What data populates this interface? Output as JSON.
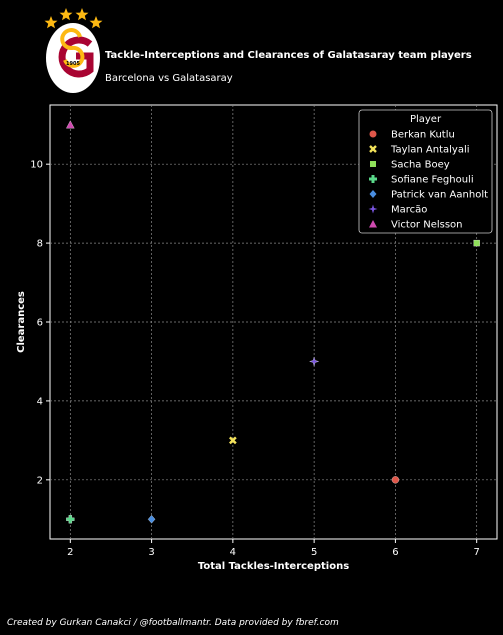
{
  "header": {
    "title": "Tackle-Interceptions and Clearances of Galatasaray team players",
    "subtitle": "Barcelona vs Galatasaray",
    "logo_text": "1905"
  },
  "footer": {
    "credit": "Created by Gurkan Canakci / @footballmantr. Data provided by fbref.com"
  },
  "colors": {
    "background": "#000000",
    "grid": "#8a8a8a",
    "logo_red": "#a90432",
    "logo_yellow": "#fdb913"
  },
  "chart_data": {
    "type": "scatter",
    "xlabel": "Total Tackles-Interceptions",
    "ylabel": "Clearances",
    "xlim": [
      1.75,
      7.25
    ],
    "ylim": [
      0.5,
      11.5
    ],
    "xticks": [
      2,
      3,
      4,
      5,
      6,
      7
    ],
    "yticks": [
      2,
      4,
      6,
      8,
      10
    ],
    "grid": true,
    "legend_title": "Player",
    "legend_position": "top-right",
    "series": [
      {
        "name": "Berkan Kutlu",
        "marker": "circle",
        "color": "#e0574a",
        "x": 6,
        "y": 2
      },
      {
        "name": "Taylan Antalyali",
        "marker": "x",
        "color": "#f3e25a",
        "x": 4,
        "y": 3
      },
      {
        "name": "Sacha Boey",
        "marker": "square",
        "color": "#8fe05a",
        "x": 7,
        "y": 8
      },
      {
        "name": "Sofiane Feghouli",
        "marker": "plus",
        "color": "#5ad88a",
        "x": 2,
        "y": 1
      },
      {
        "name": "Patrick van Aanholt",
        "marker": "diamond",
        "color": "#4a8ee0",
        "x": 3,
        "y": 1
      },
      {
        "name": "Marcão",
        "marker": "star",
        "color": "#7a55e0",
        "x": 5,
        "y": 5
      },
      {
        "name": "Victor Nelsson",
        "marker": "triangle",
        "color": "#d04ab0",
        "x": 2,
        "y": 11
      }
    ]
  }
}
